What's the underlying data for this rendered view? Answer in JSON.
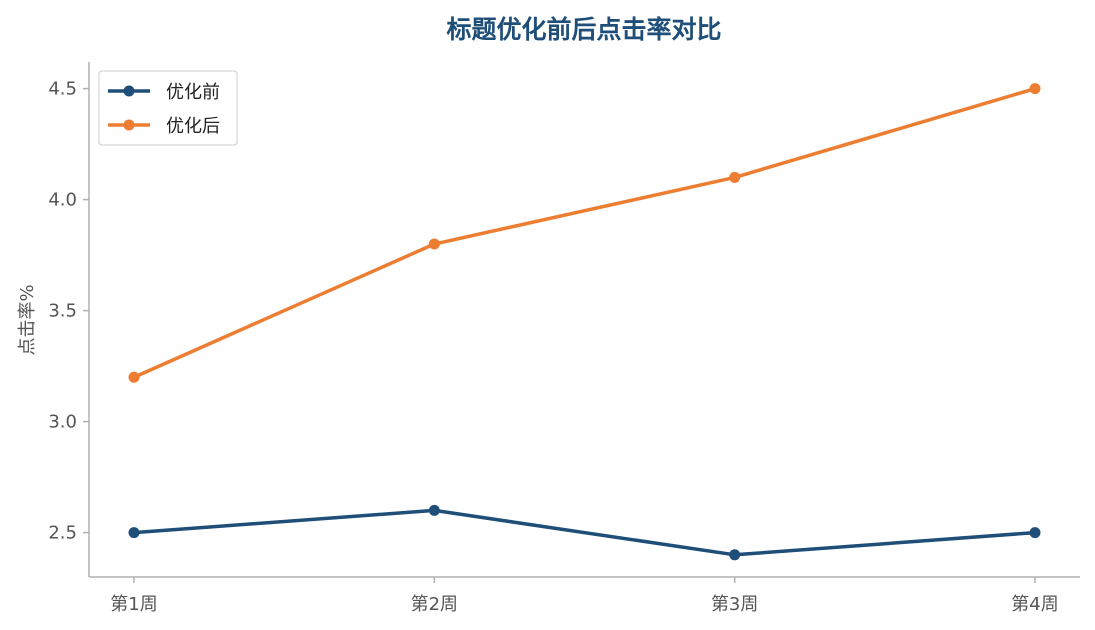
{
  "chart_data": {
    "type": "line",
    "title": "标题优化前后点击率对比",
    "xlabel": "",
    "ylabel": "点击率%",
    "categories": [
      "第1周",
      "第2周",
      "第3周",
      "第4周"
    ],
    "series": [
      {
        "name": "优化前",
        "color": "#1f4e79",
        "values": [
          2.5,
          2.6,
          2.4,
          2.5
        ]
      },
      {
        "name": "优化后",
        "color": "#ed7d31",
        "values": [
          3.2,
          3.8,
          4.1,
          4.5
        ]
      }
    ],
    "ylim": [
      2.3,
      4.62
    ],
    "yticks": [
      2.5,
      3.0,
      3.5,
      4.0,
      4.5
    ],
    "ytick_labels": [
      "2.5",
      "3.0",
      "3.5",
      "4.0",
      "4.5"
    ],
    "grid": false,
    "legend_position": "top-left",
    "colors": {
      "title": "#1f4e79",
      "axis": "#b0b0b0",
      "tick_text": "#555555"
    }
  }
}
